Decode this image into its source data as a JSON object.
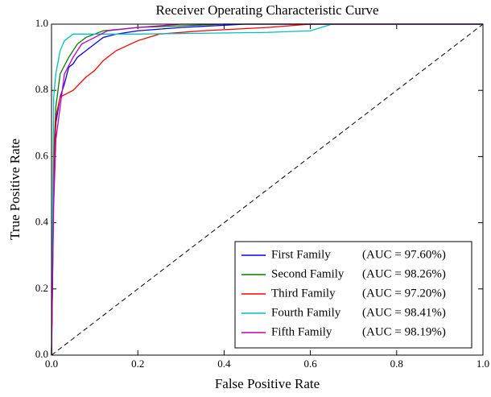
{
  "chart_data": {
    "type": "line",
    "title": "Receiver Operating Characteristic Curve",
    "xlabel": "False Positive Rate",
    "ylabel": "True Positive Rate",
    "xlim": [
      0,
      1
    ],
    "ylim": [
      0,
      1
    ],
    "xticks": [
      {
        "value": 0,
        "label": "0.0"
      },
      0.2,
      0.4,
      0.6,
      0.8,
      {
        "value": 1,
        "label": "1.0"
      }
    ],
    "yticks": [
      {
        "value": 0,
        "label": "0.0"
      },
      0.2,
      0.4,
      0.6,
      0.8,
      {
        "value": 1,
        "label": "1.0"
      }
    ],
    "legend": "lower right",
    "series": [
      {
        "name": "First Family",
        "label": "(AUC = 97.60%)",
        "color": "#0000ff",
        "x": [
          0,
          0.005,
          0.01,
          0.02,
          0.03,
          0.04,
          0.05,
          0.06,
          0.08,
          0.1,
          0.12,
          0.15,
          0.2,
          0.3,
          0.45,
          1
        ],
        "values": [
          0,
          0.5,
          0.7,
          0.78,
          0.82,
          0.87,
          0.88,
          0.9,
          0.92,
          0.94,
          0.96,
          0.97,
          0.98,
          0.99,
          1,
          1
        ]
      },
      {
        "name": "Second Family",
        "label": "(AUC = 98.26%)",
        "color": "#008000",
        "x": [
          0,
          0.005,
          0.01,
          0.02,
          0.04,
          0.06,
          0.08,
          0.12,
          0.2,
          0.4,
          1
        ],
        "values": [
          0,
          0.6,
          0.75,
          0.85,
          0.9,
          0.94,
          0.96,
          0.98,
          0.99,
          1,
          1
        ]
      },
      {
        "name": "Third Family",
        "label": "(AUC = 97.20%)",
        "color": "#ff0000",
        "x": [
          0,
          0.005,
          0.01,
          0.02,
          0.05,
          0.08,
          0.1,
          0.12,
          0.15,
          0.2,
          0.25,
          0.35,
          0.5,
          0.6,
          1
        ],
        "values": [
          0,
          0.55,
          0.72,
          0.78,
          0.8,
          0.84,
          0.86,
          0.89,
          0.92,
          0.95,
          0.97,
          0.98,
          0.99,
          1,
          1
        ]
      },
      {
        "name": "Fourth Family",
        "label": "(AUC = 98.41%)",
        "color": "#00bfbf",
        "x": [
          0,
          0.005,
          0.01,
          0.02,
          0.03,
          0.05,
          0.1,
          0.2,
          0.5,
          0.6,
          0.65,
          1
        ],
        "values": [
          0,
          0.78,
          0.85,
          0.92,
          0.95,
          0.97,
          0.97,
          0.97,
          0.975,
          0.98,
          1,
          1
        ]
      },
      {
        "name": "Fifth Family",
        "label": "(AUC = 98.19%)",
        "color": "#bf00bf",
        "x": [
          0,
          0.005,
          0.01,
          0.02,
          0.03,
          0.05,
          0.07,
          0.1,
          0.13,
          0.2,
          0.3,
          1
        ],
        "values": [
          0,
          0.45,
          0.65,
          0.75,
          0.85,
          0.9,
          0.94,
          0.96,
          0.98,
          0.99,
          1,
          1
        ]
      }
    ]
  }
}
